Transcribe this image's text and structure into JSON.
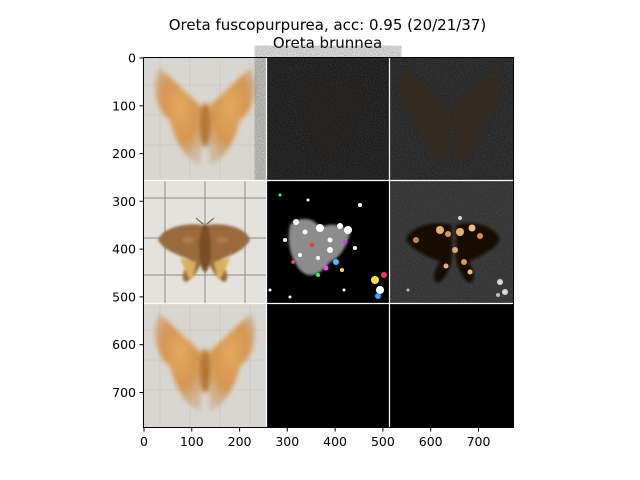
{
  "figure": {
    "title_line1": "Oreta fuscopurpurea, acc: 0.95 (20/21/37)",
    "title_line2": "Oreta brunnea"
  },
  "axes": {
    "x_range": [
      0,
      774
    ],
    "y_range": [
      0,
      774
    ],
    "x_ticks": [
      "0",
      "100",
      "200",
      "300",
      "400",
      "500",
      "600",
      "700"
    ],
    "y_ticks": [
      "0",
      "100",
      "200",
      "300",
      "400",
      "500",
      "600",
      "700"
    ]
  },
  "grid_panels": [
    {
      "row": 0,
      "col": 0,
      "content": "blurry averaged orange moth image"
    },
    {
      "row": 0,
      "col": 1,
      "content": "dark noisy saliency map"
    },
    {
      "row": 0,
      "col": 2,
      "content": "dark faint moth silhouette"
    },
    {
      "row": 1,
      "col": 0,
      "content": "photo of brown moth on grid paper"
    },
    {
      "row": 1,
      "col": 1,
      "content": "sparse colorful noise mask on black"
    },
    {
      "row": 1,
      "col": 2,
      "content": "masked moth highlights on dark"
    },
    {
      "row": 2,
      "col": 0,
      "content": "blurry averaged orange moth image"
    },
    {
      "row": 2,
      "col": 1,
      "content": "black panel"
    },
    {
      "row": 2,
      "col": 2,
      "content": "black panel"
    }
  ]
}
